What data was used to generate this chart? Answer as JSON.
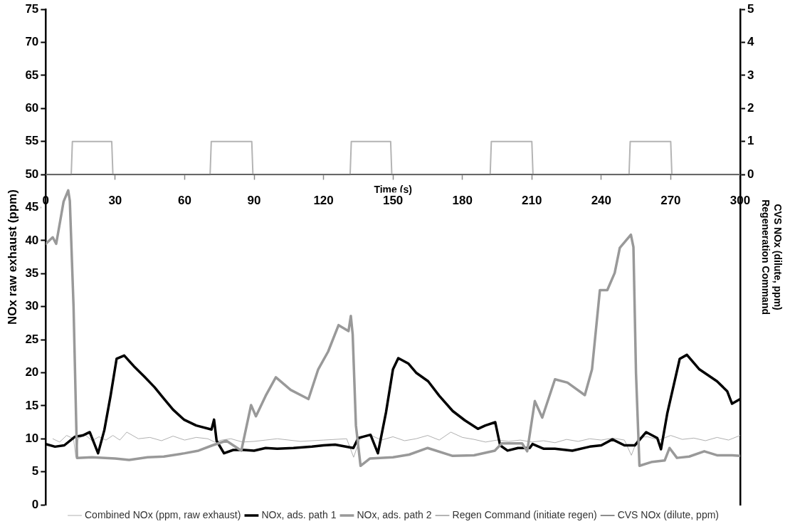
{
  "chart_data": {
    "type": "line",
    "xlabel": "Time (s)",
    "ylabel": "NOx raw exhaust (ppm)",
    "y2label": "CVS NOx (dilute, ppm)\nRegeneration Command",
    "xlim": [
      0,
      300
    ],
    "xticks": [
      0,
      30,
      60,
      90,
      120,
      150,
      180,
      210,
      240,
      270,
      300
    ],
    "ylim": [
      0,
      75
    ],
    "yticks": [
      0,
      5,
      10,
      15,
      20,
      25,
      30,
      35,
      40,
      45,
      50,
      55,
      60,
      65,
      70,
      75
    ],
    "y2lim": [
      -10,
      5
    ],
    "y2ticks": [
      0,
      1,
      2,
      3,
      4,
      5
    ],
    "grid": false,
    "legend": "bottom",
    "marker": "none",
    "line_style": "solid",
    "series": [
      {
        "name": "Combined NOx (ppm, raw exhaust)",
        "color": "#b0b0b0",
        "x": [
          3,
          6,
          9,
          12,
          13,
          14,
          17,
          20,
          23,
          26,
          29,
          32,
          35,
          40,
          45,
          50,
          55,
          60,
          65,
          70,
          73,
          76,
          80,
          85,
          90,
          95,
          100,
          110,
          120,
          130,
          133,
          136,
          140,
          145,
          150,
          155,
          160,
          165,
          170,
          175,
          180,
          185,
          190,
          195,
          200,
          205,
          210,
          215,
          220,
          225,
          230,
          235,
          240,
          245,
          250,
          253,
          256,
          260,
          265,
          270,
          275,
          280,
          285,
          290,
          295,
          300
        ],
        "values": [
          10,
          9.5,
          10.5,
          10,
          7.2,
          10,
          10.6,
          9.7,
          10.3,
          9.8,
          10.5,
          9.8,
          11,
          10,
          10.2,
          9.7,
          10.4,
          9.8,
          10.2,
          10,
          9.5,
          9.8,
          10,
          9.5,
          9.6,
          9.8,
          10,
          9.6,
          9.8,
          10,
          7.2,
          10.2,
          10.6,
          9.8,
          10.3,
          9.7,
          10,
          10.5,
          9.8,
          11,
          10.2,
          9.9,
          9.5,
          9.8,
          9.6,
          9.8,
          9.5,
          9.7,
          9.4,
          9.9,
          9.6,
          10,
          9.8,
          10.1,
          9.8,
          7.5,
          10.2,
          10.3,
          9.8,
          10.5,
          9.9,
          10.1,
          9.7,
          10.2,
          9.8,
          10.5
        ]
      },
      {
        "name": "NOx, ads. path 1",
        "color": "#000000",
        "x": [
          0,
          4,
          8,
          12.6,
          16,
          19,
          22.6,
          25.3,
          28,
          30.6,
          33.9,
          38,
          42.6,
          47,
          51.2,
          55,
          59.7,
          65,
          71.6,
          72.7,
          73.8,
          77,
          81,
          85.6,
          90,
          95,
          100,
          107,
          115,
          120,
          125,
          132.9,
          135,
          140.3,
          143.5,
          147,
          150,
          152.3,
          156.6,
          160,
          165.2,
          170,
          175.8,
          181,
          186.7,
          189.9,
          194.2,
          196.3,
          199.5,
          204,
          209.1,
          210.3,
          215,
          220,
          227.5,
          235,
          240,
          244.8,
          250,
          254.5,
          259.4,
          264.2,
          265.8,
          268.5,
          273.9,
          277,
          282.4,
          290,
          294.4,
          296.5,
          300
        ],
        "values": [
          9.2,
          8.8,
          9,
          10.3,
          10.5,
          11,
          7.8,
          11.3,
          16.5,
          22.1,
          22.6,
          21,
          19.4,
          17.8,
          16,
          14.4,
          12.9,
          12,
          11.4,
          12.9,
          9.7,
          7.8,
          8.3,
          8.3,
          8.2,
          8.6,
          8.5,
          8.6,
          8.8,
          9,
          9.1,
          8.6,
          10.1,
          10.6,
          7.8,
          14,
          20.5,
          22.2,
          21.4,
          20,
          18.7,
          16.5,
          14.2,
          12.8,
          11.5,
          12,
          12.5,
          9,
          8.2,
          8.6,
          8.6,
          9.2,
          8.5,
          8.5,
          8.2,
          8.8,
          9,
          9.9,
          9,
          9,
          11,
          10.1,
          8.4,
          13.8,
          22.1,
          22.7,
          20.5,
          18.7,
          17.2,
          15.3,
          16
        ]
      },
      {
        "name": "NOx, ads. path 2",
        "color": "#999999",
        "x": [
          0,
          3,
          4.5,
          7.7,
          9.7,
          10.4,
          12,
          13.5,
          20,
          30,
          36,
          44,
          51,
          60,
          66,
          72,
          78,
          84.5,
          88.7,
          90.8,
          95,
          99.4,
          105.8,
          113.5,
          117.7,
          122,
          126.5,
          130.8,
          131.8,
          132.6,
          134,
          136,
          140,
          150,
          157,
          165,
          175.8,
          185,
          194,
          197,
          205.8,
          208,
          211.3,
          214.5,
          220,
          225.4,
          232.9,
          236,
          239.4,
          242.6,
          245.8,
          248,
          252.8,
          253.9,
          255,
          256.5,
          262,
          267.4,
          269.5,
          272.7,
          278,
          284.5,
          290,
          296.5,
          300
        ],
        "values": [
          39.5,
          40.5,
          39.5,
          45.9,
          47.6,
          46,
          30,
          7.1,
          7.2,
          7,
          6.8,
          7.2,
          7.3,
          7.8,
          8.2,
          9,
          9.7,
          8.2,
          15.1,
          13.4,
          16.5,
          19.3,
          17.4,
          16,
          20.5,
          23.2,
          27.2,
          26.3,
          28.6,
          25.8,
          12,
          5.9,
          7,
          7.2,
          7.6,
          8.6,
          7.4,
          7.5,
          8.2,
          9.3,
          9.3,
          8.1,
          15.7,
          13.2,
          19,
          18.5,
          16.6,
          20.5,
          32.5,
          32.5,
          35.1,
          38.9,
          40.9,
          39,
          20,
          5.9,
          6.5,
          6.7,
          8.6,
          7.1,
          7.3,
          8.1,
          7.5,
          7.5,
          7.4
        ]
      },
      {
        "name": "Regen Command (initiate regen)",
        "color": "#b4b4b4",
        "axis": "y2",
        "x": [
          0,
          11,
          11.5,
          28.5,
          29,
          71,
          71.5,
          89,
          89.5,
          131.5,
          132,
          149,
          149.5,
          192,
          192.5,
          210,
          210.5,
          252,
          252.5,
          270,
          270.5,
          300
        ],
        "values": [
          0,
          0,
          1,
          1,
          0,
          0,
          1,
          1,
          0,
          0,
          1,
          1,
          0,
          0,
          1,
          1,
          0,
          0,
          1,
          1,
          0,
          0
        ]
      },
      {
        "name": "CVS NOx (dilute, ppm)",
        "color": "#404040",
        "axis": "y2",
        "x": [
          0,
          30,
          60,
          90,
          120,
          150,
          180,
          210,
          240,
          270,
          300
        ],
        "values": [
          0,
          0,
          0,
          0,
          0,
          0,
          0,
          0,
          0,
          0,
          0
        ]
      }
    ]
  }
}
